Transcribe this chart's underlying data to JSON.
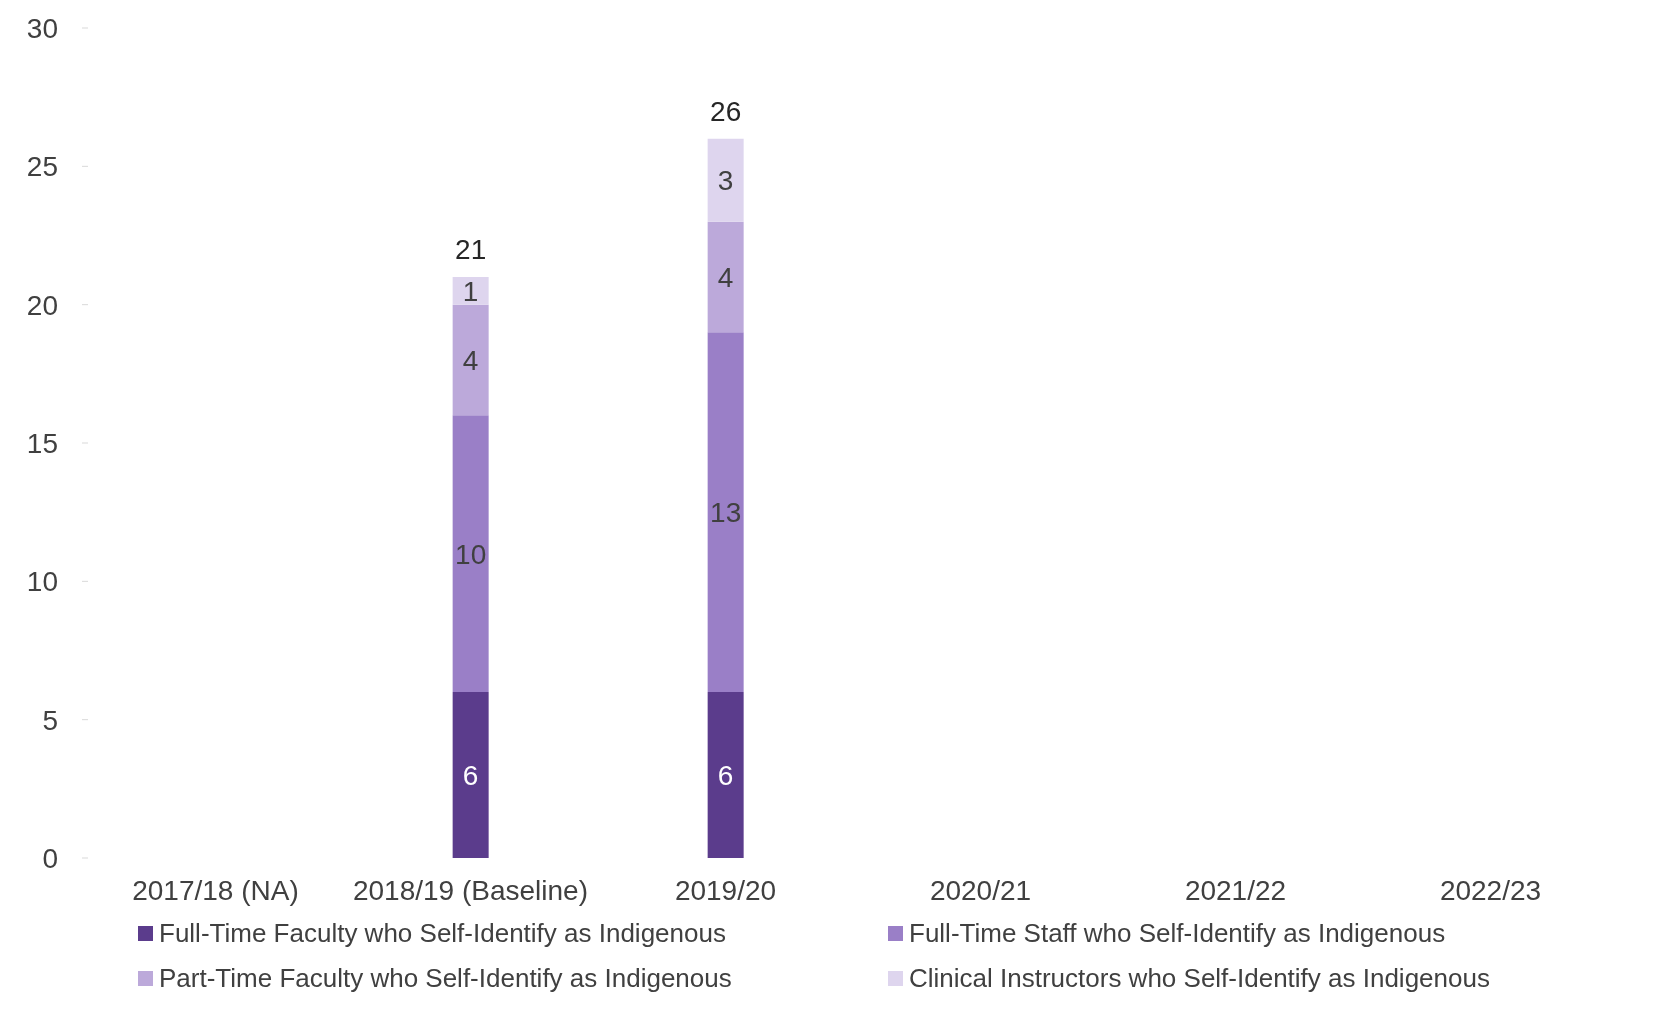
{
  "chart_data": {
    "type": "bar",
    "stacked": true,
    "categories": [
      "2017/18 (NA)",
      "2018/19 (Baseline)",
      "2019/20",
      "2020/21",
      "2021/22",
      "2022/23"
    ],
    "series": [
      {
        "name": "Full-Time Faculty who Self-Identify as Indigenous",
        "color": "#5b3c8c",
        "values": [
          null,
          6,
          6,
          null,
          null,
          null
        ]
      },
      {
        "name": "Full-Time Staff who Self-Identify as Indigenous",
        "color": "#9a7fc7",
        "values": [
          null,
          10,
          13,
          null,
          null,
          null
        ]
      },
      {
        "name": "Part-Time Faculty who Self-Identify as Indigenous",
        "color": "#bca9da",
        "values": [
          null,
          4,
          4,
          null,
          null,
          null
        ]
      },
      {
        "name": "Clinical Instructors who Self-Identify as Indigenous",
        "color": "#ded5ee",
        "values": [
          null,
          1,
          3,
          null,
          null,
          null
        ]
      }
    ],
    "totals": [
      null,
      "21",
      "26",
      null,
      null,
      null
    ],
    "ylim": [
      0,
      30
    ],
    "yticks": [
      0,
      5,
      10,
      15,
      20,
      25,
      30
    ],
    "grid": false,
    "data_labels": true,
    "legend": "bottom"
  }
}
